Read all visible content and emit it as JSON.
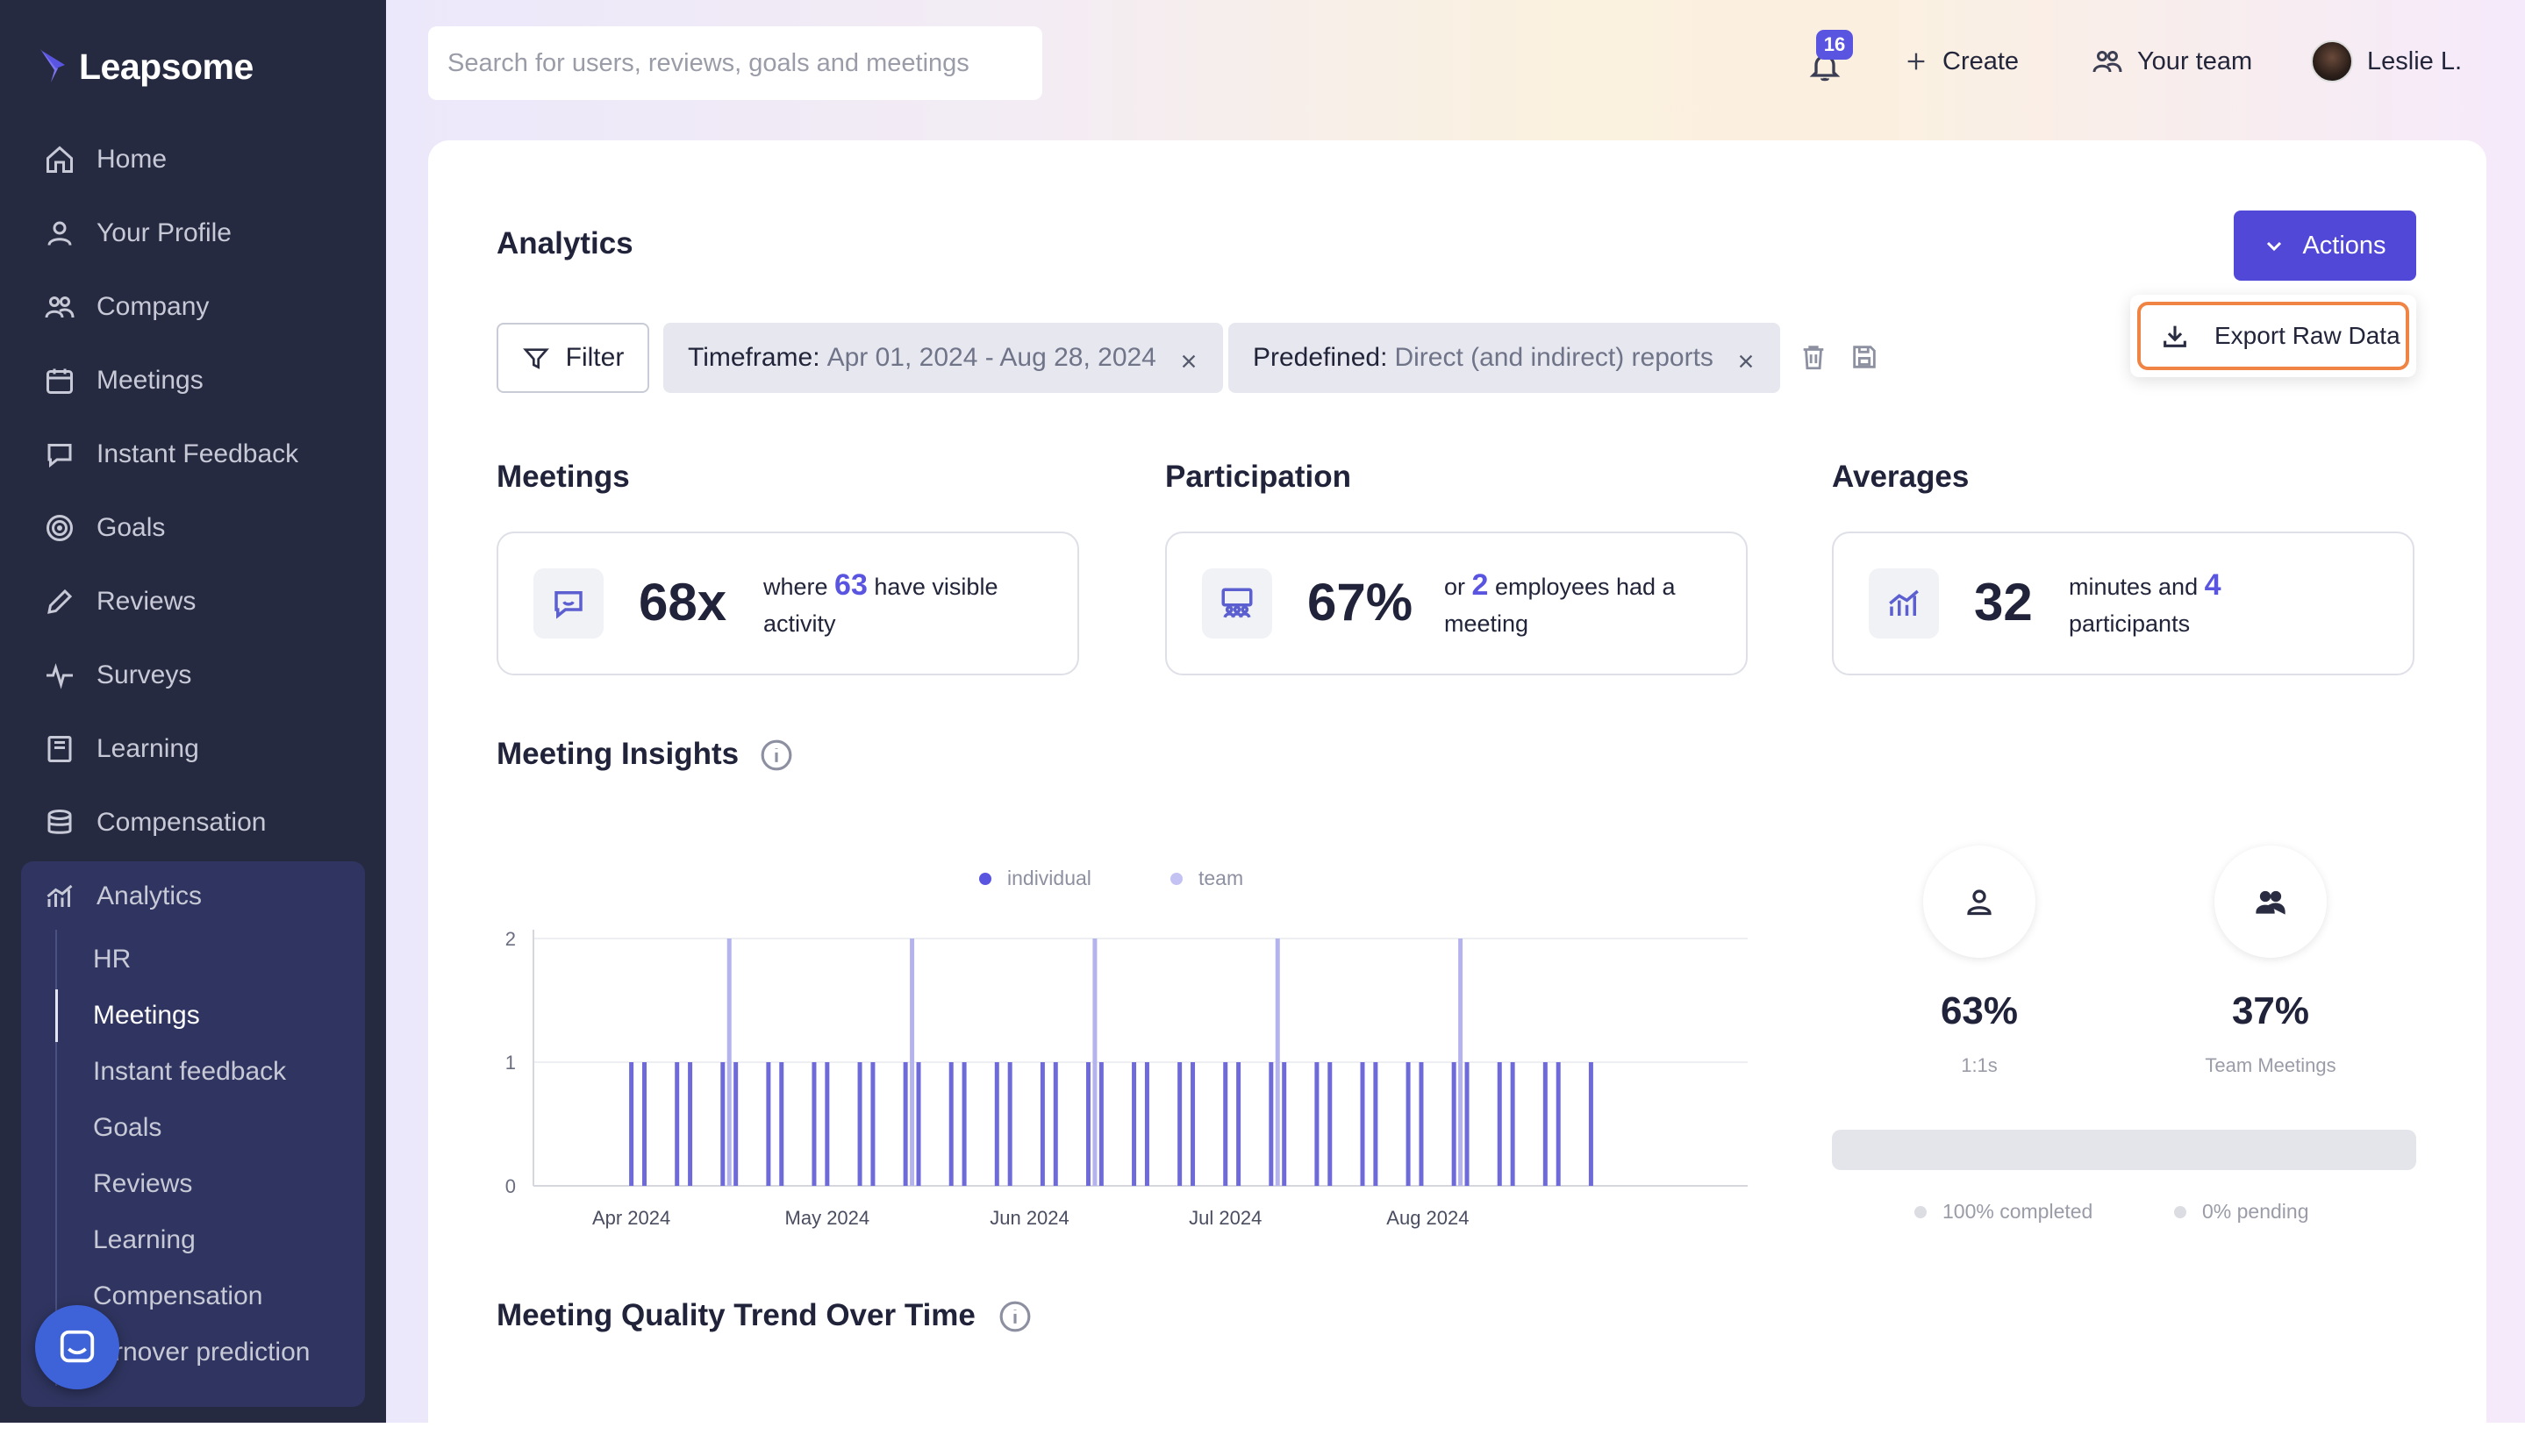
{
  "brand": {
    "name": "Leapsome"
  },
  "search": {
    "placeholder": "Search for users, reviews, goals and meetings"
  },
  "topbar": {
    "notifications_count": "16",
    "create_label": "Create",
    "team_label": "Your team",
    "user_name": "Leslie L."
  },
  "sidebar": {
    "items": [
      {
        "label": "Home",
        "icon": "home-icon"
      },
      {
        "label": "Your Profile",
        "icon": "user-icon"
      },
      {
        "label": "Company",
        "icon": "people-icon"
      },
      {
        "label": "Meetings",
        "icon": "calendar-icon"
      },
      {
        "label": "Instant Feedback",
        "icon": "chat-icon"
      },
      {
        "label": "Goals",
        "icon": "target-icon"
      },
      {
        "label": "Reviews",
        "icon": "pen-icon"
      },
      {
        "label": "Surveys",
        "icon": "pulse-icon"
      },
      {
        "label": "Learning",
        "icon": "book-icon"
      },
      {
        "label": "Compensation",
        "icon": "coins-icon"
      },
      {
        "label": "Analytics",
        "icon": "analytics-icon"
      }
    ],
    "analytics_sub": [
      {
        "label": "HR"
      },
      {
        "label": "Meetings",
        "active": true
      },
      {
        "label": "Instant feedback"
      },
      {
        "label": "Goals"
      },
      {
        "label": "Reviews"
      },
      {
        "label": "Learning"
      },
      {
        "label": "Compensation"
      },
      {
        "label": "rnover prediction"
      }
    ]
  },
  "page": {
    "title": "Analytics",
    "actions_label": "Actions",
    "export_label": "Export Raw Data",
    "filter_label": "Filter",
    "chips": [
      {
        "key": "Timeframe:",
        "value": "Apr 01, 2024 - Aug 28, 2024"
      },
      {
        "key": "Predefined:",
        "value": "Direct (and indirect) reports"
      }
    ]
  },
  "stats": {
    "meetings": {
      "title": "Meetings",
      "big": "68x",
      "pre": "where ",
      "hl": "63",
      "post": " have visible activity"
    },
    "participation": {
      "title": "Participation",
      "big": "67%",
      "pre": "or ",
      "hl": "2",
      "post": " employees had a meeting"
    },
    "averages": {
      "title": "Averages",
      "big": "32",
      "pre": "minutes and ",
      "hl": "4",
      "post": " participants"
    }
  },
  "insights": {
    "title": "Meeting Insights",
    "one_on_one_pct": "63%",
    "one_on_one_label": "1:1s",
    "team_pct": "37%",
    "team_label": "Team Meetings",
    "completed_label": "100% completed",
    "pending_label": "0% pending",
    "completed_fraction": 1.0
  },
  "quality": {
    "title": "Meeting Quality Trend Over Time"
  },
  "colors": {
    "accent": "#5148d8",
    "individual": "#6e6ad9",
    "team": "#b5b3ee",
    "export_outline": "#ef8445"
  },
  "chart_data": {
    "type": "bar",
    "legend": [
      "individual",
      "team"
    ],
    "legend_position": "top-center",
    "y_ticks": [
      "0",
      "1",
      "2"
    ],
    "ylim": [
      0,
      2
    ],
    "x_ticks": [
      {
        "label": "Apr 2024",
        "at": "2024-04-01"
      },
      {
        "label": "May 2024",
        "at": "2024-05-01"
      },
      {
        "label": "Jun 2024",
        "at": "2024-06-01"
      },
      {
        "label": "Jul 2024",
        "at": "2024-07-01"
      },
      {
        "label": "Aug 2024",
        "at": "2024-08-01"
      }
    ],
    "xlim": [
      "2024-03-17",
      "2024-09-19"
    ],
    "series": [
      {
        "name": "individual",
        "x": [
          "2024-04-01",
          "2024-04-03",
          "2024-04-08",
          "2024-04-10",
          "2024-04-15",
          "2024-04-17",
          "2024-04-22",
          "2024-04-24",
          "2024-04-29",
          "2024-05-01",
          "2024-05-06",
          "2024-05-08",
          "2024-05-13",
          "2024-05-15",
          "2024-05-20",
          "2024-05-22",
          "2024-05-27",
          "2024-05-29",
          "2024-06-03",
          "2024-06-05",
          "2024-06-10",
          "2024-06-12",
          "2024-06-17",
          "2024-06-19",
          "2024-06-24",
          "2024-06-26",
          "2024-07-01",
          "2024-07-03",
          "2024-07-08",
          "2024-07-10",
          "2024-07-15",
          "2024-07-17",
          "2024-07-22",
          "2024-07-24",
          "2024-07-29",
          "2024-07-31",
          "2024-08-05",
          "2024-08-07",
          "2024-08-12",
          "2024-08-14",
          "2024-08-19",
          "2024-08-21",
          "2024-08-26"
        ],
        "values": [
          1,
          1,
          1,
          1,
          1,
          1,
          1,
          1,
          1,
          1,
          1,
          1,
          1,
          1,
          1,
          1,
          1,
          1,
          1,
          1,
          1,
          1,
          1,
          1,
          1,
          1,
          1,
          1,
          1,
          1,
          1,
          1,
          1,
          1,
          1,
          1,
          1,
          1,
          1,
          1,
          1,
          1,
          1
        ]
      },
      {
        "name": "team",
        "x": [
          "2024-04-16",
          "2024-05-14",
          "2024-06-11",
          "2024-07-09",
          "2024-08-06"
        ],
        "values": [
          2,
          2,
          2,
          2,
          2
        ]
      }
    ]
  }
}
